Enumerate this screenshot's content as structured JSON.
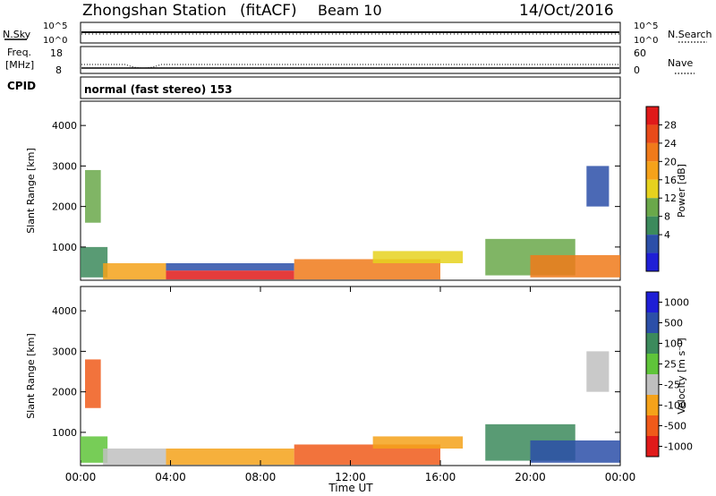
{
  "header": {
    "station": "Zhongshan Station",
    "mode": "(fitACF)",
    "beam": "Beam 10",
    "date": "14/Oct/2016"
  },
  "top_panels": {
    "nsky_label": "N.Sky",
    "nsky_ticks": [
      "10^5",
      "10^0"
    ],
    "nsearch_label": "N.Search",
    "nsearch_ticks": [
      "10^5",
      "10^0"
    ],
    "freq_label_1": "Freq.",
    "freq_label_2": "[MHz]",
    "freq_ticks": [
      "18",
      "8"
    ],
    "nave_label": "Nave",
    "nave_ticks": [
      "60",
      "0"
    ],
    "cpid_label": "CPID",
    "cpid_text": "normal (fast stereo) 153"
  },
  "colors": {
    "power": [
      "#1f1fd6",
      "#2c4fa8",
      "#3c8a5c",
      "#6aa84a",
      "#e6d21e",
      "#f5a21a",
      "#f07a1a",
      "#e84a1a",
      "#e01a1a"
    ],
    "velocity": [
      "#e01a1a",
      "#f05a1a",
      "#f5a21a",
      "#bfbfbf",
      "#5fc43a",
      "#3c8a5c",
      "#2c4fa8",
      "#1f1fd6"
    ]
  },
  "chart_data": [
    {
      "type": "heatmap",
      "name": "power",
      "xlabel": "",
      "ylabel": "Slant Range [km]",
      "x_range_hours": [
        0,
        24
      ],
      "ylim": [
        180,
        4600
      ],
      "y_ticks": [
        "4000",
        "3000",
        "2000",
        "1000"
      ],
      "colorbar_label": "Power [dB]",
      "colorbar_ticks": [
        "28",
        "24",
        "20",
        "16",
        "12",
        "8",
        "4"
      ],
      "series": [
        {
          "t0": 0.0,
          "t1": 1.2,
          "r0": 250,
          "r1": 1000,
          "level": 2
        },
        {
          "t0": 0.2,
          "t1": 0.9,
          "r0": 1600,
          "r1": 2900,
          "level": 3
        },
        {
          "t0": 1.0,
          "t1": 3.8,
          "r0": 200,
          "r1": 600,
          "level": 5
        },
        {
          "t0": 3.8,
          "t1": 9.5,
          "r0": 200,
          "r1": 420,
          "level": 8
        },
        {
          "t0": 3.8,
          "t1": 9.5,
          "r0": 420,
          "r1": 600,
          "level": 1
        },
        {
          "t0": 9.5,
          "t1": 16.0,
          "r0": 200,
          "r1": 700,
          "level": 6
        },
        {
          "t0": 13.0,
          "t1": 17.0,
          "r0": 600,
          "r1": 900,
          "level": 4
        },
        {
          "t0": 18.0,
          "t1": 22.0,
          "r0": 300,
          "r1": 1200,
          "level": 3
        },
        {
          "t0": 20.0,
          "t1": 24.0,
          "r0": 250,
          "r1": 800,
          "level": 6
        },
        {
          "t0": 22.5,
          "t1": 23.5,
          "r0": 2000,
          "r1": 3000,
          "level": 1
        }
      ]
    },
    {
      "type": "heatmap",
      "name": "velocity",
      "xlabel": "Time UT",
      "ylabel": "Slant Range [km]",
      "x_range_hours": [
        0,
        24
      ],
      "x_ticks": [
        "00:00",
        "04:00",
        "08:00",
        "12:00",
        "16:00",
        "20:00",
        "00:00"
      ],
      "ylim": [
        180,
        4600
      ],
      "y_ticks": [
        "4000",
        "3000",
        "2000",
        "1000"
      ],
      "colorbar_label": "Velocity [m s⁻¹]",
      "colorbar_ticks": [
        "1000",
        "500",
        "100",
        "25",
        "-25",
        "-100",
        "-500",
        "-1000"
      ],
      "series": [
        {
          "t0": 0.0,
          "t1": 1.2,
          "r0": 250,
          "r1": 900,
          "level": 4
        },
        {
          "t0": 0.2,
          "t1": 0.9,
          "r0": 1600,
          "r1": 2800,
          "level": 1
        },
        {
          "t0": 1.0,
          "t1": 3.8,
          "r0": 200,
          "r1": 600,
          "level": 3
        },
        {
          "t0": 3.8,
          "t1": 9.5,
          "r0": 200,
          "r1": 600,
          "level": 2
        },
        {
          "t0": 9.5,
          "t1": 16.0,
          "r0": 200,
          "r1": 700,
          "level": 1
        },
        {
          "t0": 13.0,
          "t1": 17.0,
          "r0": 600,
          "r1": 900,
          "level": 2
        },
        {
          "t0": 18.0,
          "t1": 22.0,
          "r0": 300,
          "r1": 1200,
          "level": 5
        },
        {
          "t0": 20.0,
          "t1": 24.0,
          "r0": 250,
          "r1": 800,
          "level": 6
        },
        {
          "t0": 22.5,
          "t1": 23.5,
          "r0": 2000,
          "r1": 3000,
          "level": 3
        }
      ]
    }
  ]
}
